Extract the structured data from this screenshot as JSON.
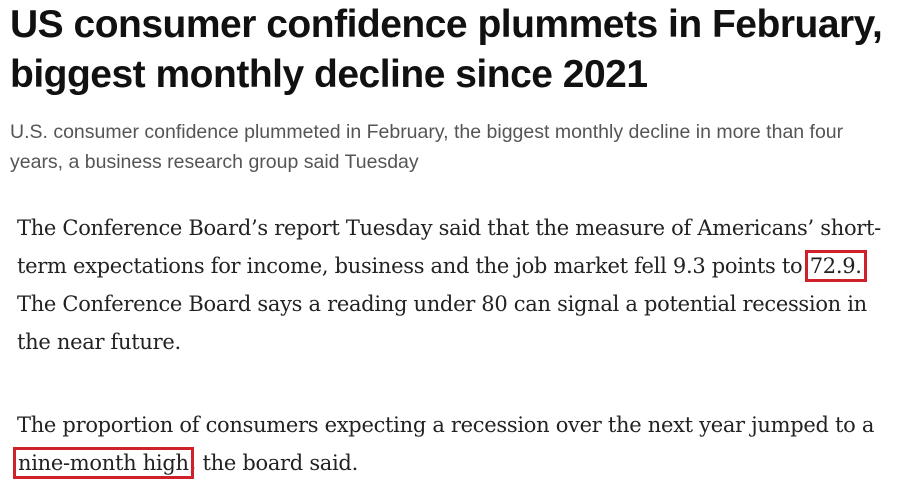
{
  "article": {
    "headline": "US consumer confidence plummets in February, biggest monthly decline since 2021",
    "subheadline": "U.S. consumer confidence plummeted in February, the biggest monthly decline in more than four years, a business research group said Tuesday",
    "paragraphs": [
      {
        "before": "The Conference Board’s report Tuesday said that the measure of Americans’ short-term expectations for income, business and the job market fell 9.3 points to ",
        "highlight": "72.9.",
        "after": " The Conference Board says a reading under 80 can signal a potential recession in the near future."
      },
      {
        "before": "The proportion of consumers expecting a recession over the next year jumped to a ",
        "highlight": "nine-month high",
        "after": ", the board said."
      }
    ],
    "highlight_color": "#d0212b"
  }
}
